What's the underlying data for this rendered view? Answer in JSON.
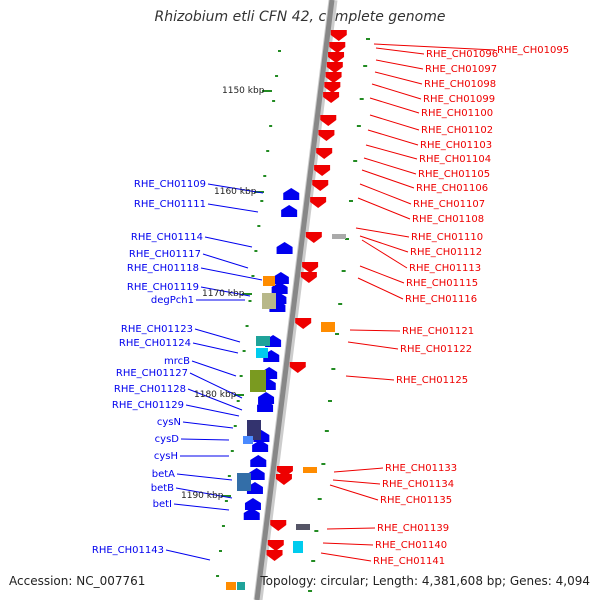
{
  "title": "Rhizobium etli CFN 42, complete genome",
  "footer": {
    "accession": "Accession: NC_007761",
    "summary": "Topology: circular; Length: 4,381,608 bp; Genes: 4,094"
  },
  "colors": {
    "forward": "#0000ee",
    "reverse": "#ee0000",
    "tick": "#228b22",
    "backbone": "#888888"
  },
  "kbp_labels": [
    "1150 kbp",
    "1160 kbp",
    "1170 kbp",
    "1180 kbp",
    "1190 kbp"
  ],
  "left_genes": [
    "RHE_CH01109",
    "RHE_CH01111",
    "RHE_CH01114",
    "RHE_CH01117",
    "RHE_CH01118",
    "RHE_CH01119",
    "degPch1",
    "RHE_CH01123",
    "RHE_CH01124",
    "mrcB",
    "RHE_CH01127",
    "RHE_CH01128",
    "RHE_CH01129",
    "cysN",
    "cysD",
    "cysH",
    "betA",
    "betB",
    "betI",
    "RHE_CH01143"
  ],
  "right_genes": [
    "RHE_CH01095",
    "RHE_CH01096",
    "RHE_CH01097",
    "RHE_CH01098",
    "RHE_CH01099",
    "RHE_CH01100",
    "RHE_CH01102",
    "RHE_CH01103",
    "RHE_CH01104",
    "RHE_CH01105",
    "RHE_CH01106",
    "RHE_CH01107",
    "RHE_CH01108",
    "RHE_CH01110",
    "RHE_CH01112",
    "RHE_CH01113",
    "RHE_CH01115",
    "RHE_CH01116",
    "RHE_CH01121",
    "RHE_CH01122",
    "RHE_CH01125",
    "RHE_CH01133",
    "RHE_CH01134",
    "RHE_CH01135",
    "RHE_CH01139",
    "RHE_CH01140",
    "RHE_CH01141"
  ]
}
